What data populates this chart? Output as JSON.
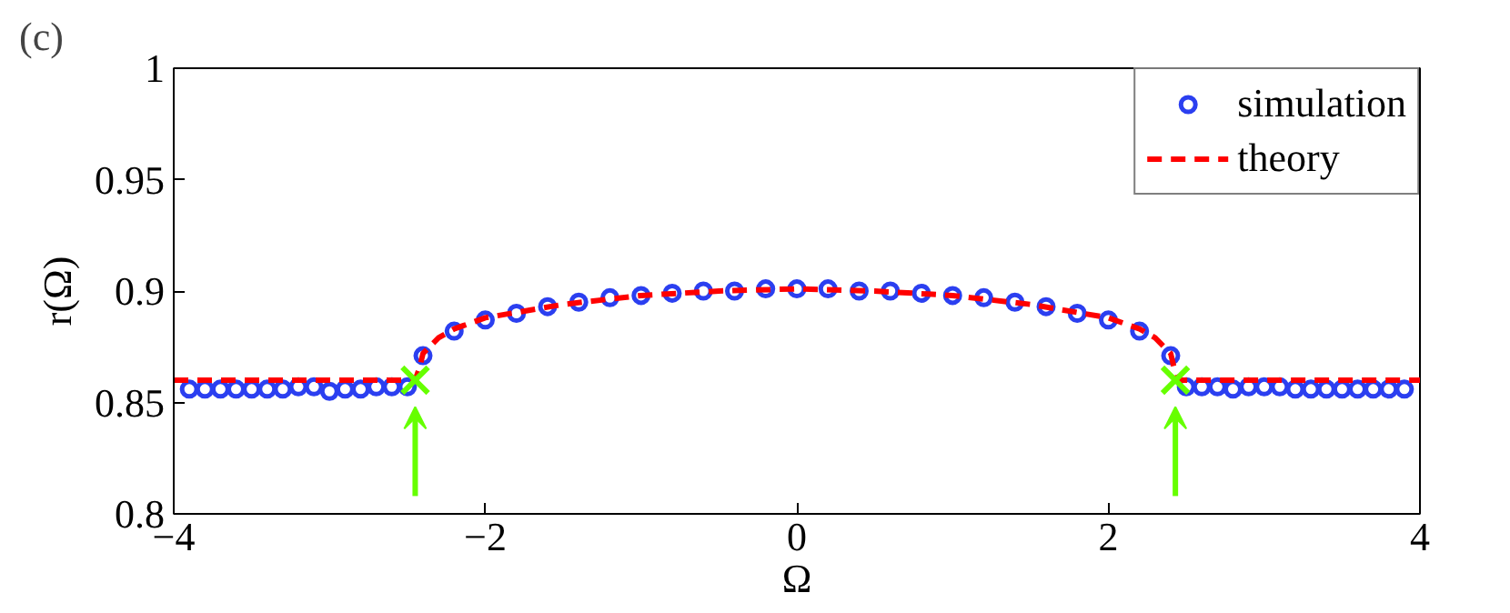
{
  "chart_data": {
    "type": "line",
    "xlabel": "Ω",
    "ylabel": "r(Ω)",
    "annotations": [
      "(c)"
    ],
    "xlim": [
      -4,
      4
    ],
    "xticks": [
      {
        "value": -4,
        "label": "−4"
      },
      {
        "value": -2,
        "label": "−2"
      },
      0,
      2,
      4
    ],
    "ylim": [
      0.8,
      1
    ],
    "yticks": [
      0.8,
      0.85,
      0.9,
      0.95,
      1
    ],
    "grid": false,
    "legend": "top right",
    "series": [
      {
        "name": "simulation",
        "type": "scatter",
        "marker": "circle",
        "color": "#2b3ff0",
        "x": [
          -3.9,
          -3.8,
          -3.7,
          -3.6,
          -3.5,
          -3.4,
          -3.3,
          -3.2,
          -3.1,
          -3.0,
          -2.9,
          -2.8,
          -2.7,
          -2.6,
          -2.5,
          -2.4,
          -2.2,
          -2.0,
          -1.8,
          -1.6,
          -1.4,
          -1.2,
          -1.0,
          -0.8,
          -0.6,
          -0.4,
          -0.2,
          0,
          0.2,
          0.4,
          0.6,
          0.8,
          1.0,
          1.2,
          1.4,
          1.6,
          1.8,
          2.0,
          2.2,
          2.4,
          2.5,
          2.6,
          2.7,
          2.8,
          2.9,
          3.0,
          3.1,
          3.2,
          3.3,
          3.4,
          3.5,
          3.6,
          3.7,
          3.8,
          3.9
        ],
        "values": [
          0.856,
          0.856,
          0.856,
          0.856,
          0.856,
          0.856,
          0.856,
          0.857,
          0.857,
          0.855,
          0.856,
          0.856,
          0.857,
          0.857,
          0.857,
          0.871,
          0.882,
          0.887,
          0.89,
          0.893,
          0.895,
          0.897,
          0.898,
          0.899,
          0.9,
          0.9,
          0.901,
          0.901,
          0.901,
          0.9,
          0.9,
          0.899,
          0.898,
          0.897,
          0.895,
          0.893,
          0.89,
          0.887,
          0.882,
          0.871,
          0.857,
          0.857,
          0.857,
          0.856,
          0.857,
          0.857,
          0.857,
          0.856,
          0.856,
          0.856,
          0.856,
          0.856,
          0.856,
          0.856,
          0.856
        ]
      },
      {
        "name": "theory",
        "line_style": "dashed",
        "color": "#ff0000",
        "x": [
          -4,
          -2.45,
          -2.42,
          -2.4,
          -2.3,
          -2.2,
          -2.0,
          -1.5,
          -1,
          -0.5,
          0,
          0.5,
          1,
          1.5,
          2,
          2.2,
          2.3,
          2.4,
          2.42,
          2.45,
          4
        ],
        "values": [
          0.86,
          0.86,
          0.866,
          0.872,
          0.879,
          0.883,
          0.888,
          0.894,
          0.898,
          0.9,
          0.901,
          0.9,
          0.898,
          0.894,
          0.888,
          0.883,
          0.879,
          0.872,
          0.866,
          0.86,
          0.86
        ]
      },
      {
        "type": "scatter",
        "marker": "cross",
        "color": "#66ff00",
        "x": [
          -2.45,
          2.43
        ],
        "values": [
          0.86,
          0.86
        ]
      }
    ]
  }
}
